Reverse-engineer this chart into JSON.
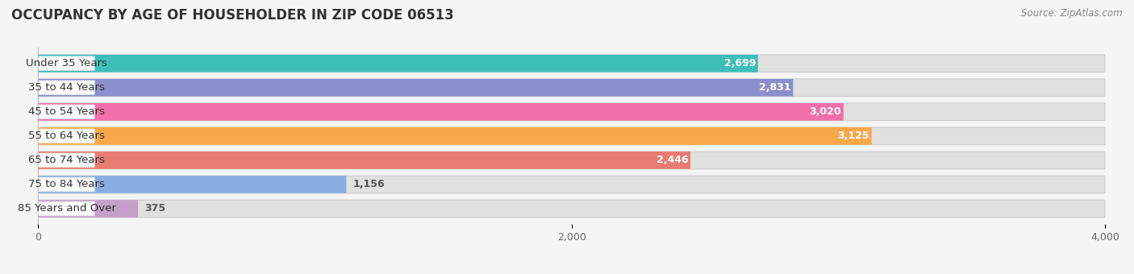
{
  "title": "OCCUPANCY BY AGE OF HOUSEHOLDER IN ZIP CODE 06513",
  "source": "Source: ZipAtlas.com",
  "categories": [
    "Under 35 Years",
    "35 to 44 Years",
    "45 to 54 Years",
    "55 to 64 Years",
    "65 to 74 Years",
    "75 to 84 Years",
    "85 Years and Over"
  ],
  "values": [
    2699,
    2831,
    3020,
    3125,
    2446,
    1156,
    375
  ],
  "bar_colors": [
    "#3dbfb8",
    "#8b8fcc",
    "#f06faa",
    "#f9a74b",
    "#e87b72",
    "#8aaee0",
    "#c4a0c8"
  ],
  "bar_bg_color": "#e0e0e0",
  "background_color": "#f5f5f5",
  "xlim_max": 4000,
  "xticks": [
    0,
    2000,
    4000
  ],
  "title_fontsize": 12,
  "label_fontsize": 9.5,
  "value_fontsize": 9,
  "source_fontsize": 8.5
}
